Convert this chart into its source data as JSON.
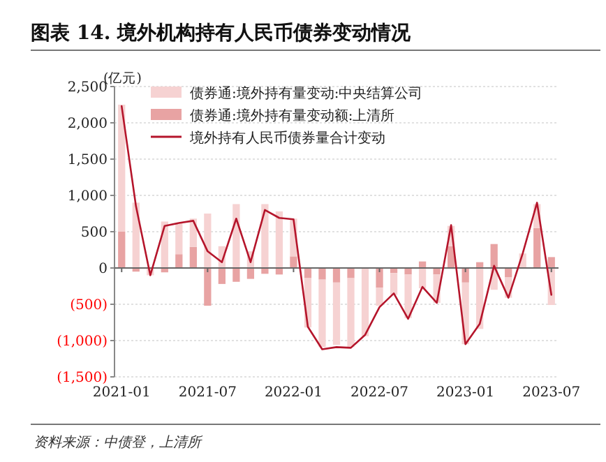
{
  "chart_data": {
    "type": "bar",
    "stacked": true,
    "title": "图表 14. 境外机构持有人民币债券变动情况",
    "ylabel": "(亿元)",
    "categories": [
      "2021-01",
      null,
      null,
      null,
      null,
      null,
      "2021-07",
      null,
      null,
      null,
      null,
      null,
      "2022-01",
      null,
      null,
      null,
      null,
      null,
      "2022-07",
      null,
      null,
      null,
      null,
      null,
      "2023-01",
      null,
      null,
      null,
      null,
      null,
      "2023-07"
    ],
    "series": [
      {
        "name": "债券通:境外持有量变动额:上清所",
        "color": "#e8a3a3",
        "values": [
          500,
          -50,
          null,
          -60,
          190,
          290,
          -520,
          -220,
          -190,
          -150,
          -80,
          -90,
          160,
          -140,
          -160,
          -200,
          -140,
          null,
          -270,
          -70,
          -90,
          90,
          -90,
          300,
          -200,
          80,
          330,
          -130,
          0,
          550,
          150
        ]
      },
      {
        "name": "债券通:境外持有量变动:中央结算公司",
        "color": "#f6d2d2",
        "values": [
          1750,
          900,
          -100,
          640,
          430,
          390,
          750,
          300,
          880,
          230,
          880,
          780,
          520,
          -680,
          -930,
          -860,
          -950,
          -940,
          -250,
          -300,
          -600,
          -280,
          -390,
          280,
          -850,
          -840,
          -300,
          -280,
          200,
          330,
          -510
        ]
      },
      {
        "name": "境外持有人民币债券量合计变动",
        "type": "line",
        "color": "#b5152b",
        "values": [
          2230,
          850,
          -100,
          580,
          620,
          650,
          230,
          80,
          680,
          80,
          800,
          690,
          670,
          -810,
          -1120,
          -1090,
          -1100,
          -920,
          -540,
          -350,
          -700,
          -260,
          -480,
          590,
          -1050,
          -770,
          30,
          -410,
          200,
          900,
          -370
        ]
      }
    ],
    "ylim": [
      -1500,
      2500
    ],
    "yticks": [
      {
        "value": -1500,
        "label": "(1,500)"
      },
      {
        "value": -1000,
        "label": "(1,000)"
      },
      {
        "value": -500,
        "label": "(500)"
      },
      0,
      {
        "value": 500,
        "label": "500"
      },
      {
        "value": 1000,
        "label": "1,000"
      },
      {
        "value": 1500,
        "label": "1,500"
      },
      {
        "value": 2000,
        "label": "2,000"
      },
      {
        "value": 2500,
        "label": "2,500"
      }
    ],
    "grid": "y",
    "legend": "top",
    "annotations": [
      "资料来源：中债登，上清所"
    ]
  }
}
